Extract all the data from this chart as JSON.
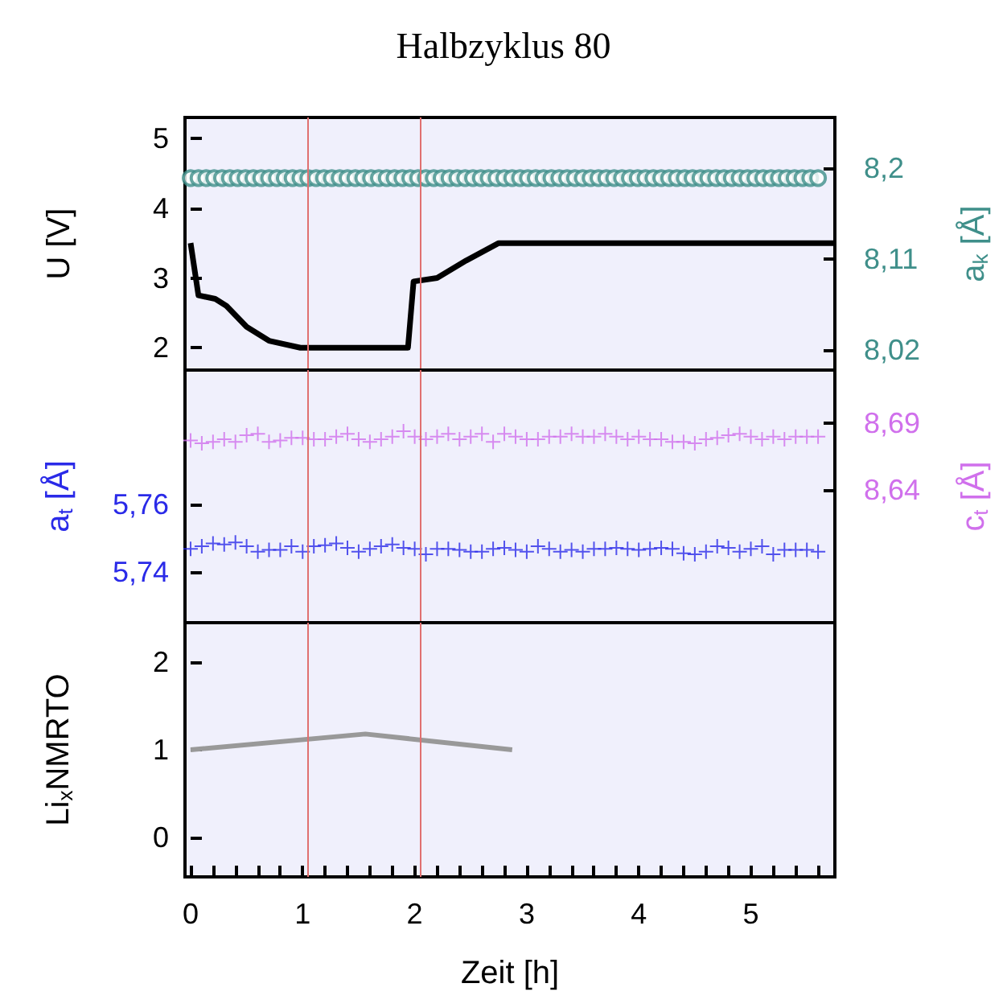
{
  "chart_data": [
    {
      "type": "line",
      "title": "Halbzyklus 80",
      "ylabel": "U [V]",
      "y2label": "a$_{k}$ [Å]",
      "xlim": [
        -0.05,
        5.75
      ],
      "ylim": [
        1.68,
        5.3
      ],
      "yticks": [
        2,
        3,
        4,
        5
      ],
      "y2lim": [
        8.0,
        8.25
      ],
      "y2ticks": [
        {
          "value": 8.02,
          "label": "8,02"
        },
        {
          "value": 8.11,
          "label": "8,11"
        },
        {
          "value": 8.2,
          "label": "8,2"
        }
      ],
      "tick_labels": "y",
      "grid": false,
      "ref_lines": [
        {
          "axis": "x",
          "value": 1.05,
          "color": "#e07070"
        },
        {
          "axis": "x",
          "value": 2.05,
          "color": "#e07070"
        }
      ],
      "series": [
        {
          "color": "#000000",
          "marker": "none",
          "x": [
            0,
            0.07,
            0.22,
            0.32,
            0.5,
            0.7,
            0.98,
            1.94,
            1.99,
            2.2,
            2.46,
            2.75,
            5.75
          ],
          "values": [
            3.5,
            2.75,
            2.7,
            2.6,
            2.3,
            2.1,
            2.0,
            2.0,
            2.95,
            3.0,
            3.25,
            3.5,
            3.5
          ]
        },
        {
          "type": "scatter",
          "axis": "y2",
          "color": "#3f8f8a",
          "marker": "circle",
          "x": [
            0,
            0.07,
            0.14,
            0.21,
            0.28,
            0.35,
            0.42,
            0.49,
            0.56,
            0.63,
            0.7,
            0.77,
            0.84,
            0.91,
            0.98,
            1.05,
            1.12,
            1.19,
            1.26,
            1.33,
            1.4,
            1.47,
            1.54,
            1.61,
            1.68,
            1.75,
            1.82,
            1.89,
            1.96,
            2.03,
            2.1,
            2.17,
            2.24,
            2.31,
            2.38,
            2.45,
            2.52,
            2.59,
            2.66,
            2.73,
            2.8,
            2.87,
            2.94,
            3.01,
            3.08,
            3.15,
            3.22,
            3.29,
            3.36,
            3.43,
            3.5,
            3.57,
            3.64,
            3.71,
            3.78,
            3.85,
            3.92,
            3.99,
            4.06,
            4.13,
            4.2,
            4.27,
            4.34,
            4.41,
            4.48,
            4.55,
            4.62,
            4.69,
            4.76,
            4.83,
            4.9,
            4.97,
            5.04,
            5.11,
            5.18,
            5.25,
            5.32,
            5.39,
            5.46,
            5.53,
            5.6
          ],
          "values": [
            8.19,
            8.19,
            8.19,
            8.19,
            8.19,
            8.19,
            8.19,
            8.19,
            8.19,
            8.19,
            8.19,
            8.19,
            8.19,
            8.19,
            8.19,
            8.19,
            8.19,
            8.19,
            8.19,
            8.19,
            8.19,
            8.19,
            8.19,
            8.19,
            8.19,
            8.19,
            8.19,
            8.19,
            8.19,
            8.19,
            8.19,
            8.19,
            8.19,
            8.19,
            8.19,
            8.19,
            8.19,
            8.19,
            8.19,
            8.19,
            8.19,
            8.19,
            8.19,
            8.19,
            8.19,
            8.19,
            8.19,
            8.19,
            8.19,
            8.19,
            8.19,
            8.19,
            8.19,
            8.19,
            8.19,
            8.19,
            8.19,
            8.19,
            8.19,
            8.19,
            8.19,
            8.19,
            8.19,
            8.19,
            8.19,
            8.19,
            8.19,
            8.19,
            8.19,
            8.19,
            8.19,
            8.19,
            8.19,
            8.19,
            8.19,
            8.19,
            8.19,
            8.19,
            8.19,
            8.19,
            8.19
          ]
        }
      ]
    },
    {
      "type": "scatter",
      "ylabel": "a$_{t}$ [Å]",
      "y2label": "c$_{t}$ [Å]",
      "xlim": [
        -0.05,
        5.75
      ],
      "ylim": [
        5.725,
        5.8
      ],
      "yticks": [
        {
          "value": 5.74,
          "label": "5,74"
        },
        {
          "value": 5.76,
          "label": "5,76"
        }
      ],
      "y2lim": [
        8.54,
        8.73
      ],
      "y2ticks": [
        {
          "value": 8.64,
          "label": "8,64"
        },
        {
          "value": 8.69,
          "label": "8,69"
        }
      ],
      "tick_labels": "y",
      "grid": false,
      "ref_lines": [
        {
          "axis": "x",
          "value": 1.05,
          "color": "#e07070"
        },
        {
          "axis": "x",
          "value": 2.05,
          "color": "#e07070"
        }
      ],
      "x": [
        0,
        0.1,
        0.2,
        0.3,
        0.4,
        0.5,
        0.6,
        0.7,
        0.8,
        0.9,
        1.0,
        1.1,
        1.2,
        1.3,
        1.4,
        1.5,
        1.6,
        1.7,
        1.8,
        1.9,
        2.0,
        2.1,
        2.2,
        2.3,
        2.4,
        2.5,
        2.6,
        2.7,
        2.8,
        2.9,
        3.0,
        3.1,
        3.2,
        3.3,
        3.4,
        3.5,
        3.6,
        3.7,
        3.8,
        3.9,
        4.0,
        4.1,
        4.2,
        4.3,
        4.4,
        4.5,
        4.6,
        4.7,
        4.8,
        4.9,
        5.0,
        5.1,
        5.2,
        5.3,
        5.4,
        5.5,
        5.6
      ],
      "series": [
        {
          "color": "#2a2ae8",
          "marker": "cross",
          "values": [
            5.7469,
            5.7477,
            5.7485,
            5.7482,
            5.7488,
            5.7477,
            5.7461,
            5.7466,
            5.7466,
            5.7477,
            5.7461,
            5.7477,
            5.748,
            5.7485,
            5.7472,
            5.7461,
            5.7469,
            5.7477,
            5.7482,
            5.7472,
            5.7469,
            5.7453,
            5.7469,
            5.7469,
            5.7466,
            5.7461,
            5.7461,
            5.7469,
            5.7472,
            5.7466,
            5.7461,
            5.7477,
            5.7469,
            5.7461,
            5.7466,
            5.7461,
            5.7469,
            5.7469,
            5.7472,
            5.7469,
            5.7466,
            5.7469,
            5.7472,
            5.7469,
            5.7456,
            5.7453,
            5.7461,
            5.7477,
            5.7472,
            5.7461,
            5.7469,
            5.7477,
            5.7453,
            5.7466,
            5.7466,
            5.7466,
            5.7461
          ]
        },
        {
          "color": "#d070ec",
          "axis": "y2",
          "marker": "cross",
          "values": [
            8.677,
            8.675,
            8.676,
            8.678,
            8.676,
            8.681,
            8.682,
            8.676,
            8.677,
            8.679,
            8.679,
            8.678,
            8.678,
            8.68,
            8.682,
            8.678,
            8.676,
            8.678,
            8.68,
            8.684,
            8.68,
            8.678,
            8.68,
            8.682,
            8.678,
            8.68,
            8.682,
            8.676,
            8.682,
            8.68,
            8.678,
            8.678,
            8.68,
            8.68,
            8.682,
            8.68,
            8.68,
            8.682,
            8.68,
            8.678,
            8.68,
            8.678,
            8.678,
            8.676,
            8.676,
            8.675,
            8.678,
            8.679,
            8.681,
            8.682,
            8.68,
            8.678,
            8.68,
            8.678,
            8.68,
            8.68,
            8.68
          ]
        }
      ]
    },
    {
      "type": "line",
      "ylabel": "Li$_{x}$NMRTO",
      "xlabel": "Zeit [h]",
      "xlim": [
        -0.05,
        5.75
      ],
      "xticks": [
        0,
        {
          "value": 0.2,
          "label": null
        },
        {
          "value": 0.4,
          "label": null
        },
        {
          "value": 0.6,
          "label": null
        },
        {
          "value": 0.8,
          "label": null
        },
        1,
        {
          "value": 1.2,
          "label": null
        },
        {
          "value": 1.4,
          "label": null
        },
        {
          "value": 1.6,
          "label": null
        },
        {
          "value": 1.8,
          "label": null
        },
        2,
        {
          "value": 2.2,
          "label": null
        },
        {
          "value": 2.4,
          "label": null
        },
        {
          "value": 2.6,
          "label": null
        },
        {
          "value": 2.8,
          "label": null
        },
        3,
        {
          "value": 3.2,
          "label": null
        },
        {
          "value": 3.4,
          "label": null
        },
        {
          "value": 3.6,
          "label": null
        },
        {
          "value": 3.8,
          "label": null
        },
        4,
        {
          "value": 4.2,
          "label": null
        },
        {
          "value": 4.4,
          "label": null
        },
        {
          "value": 4.6,
          "label": null
        },
        {
          "value": 4.8,
          "label": null
        },
        5,
        {
          "value": 5.2,
          "label": null
        },
        {
          "value": 5.4,
          "label": null
        },
        {
          "value": 5.6,
          "label": null
        }
      ],
      "ylim": [
        -0.45,
        2.45
      ],
      "yticks": [
        0,
        1,
        2
      ],
      "grid": false,
      "ref_lines": [
        {
          "axis": "x",
          "value": 1.05,
          "color": "#e07070"
        },
        {
          "axis": "x",
          "value": 2.05,
          "color": "#e07070"
        }
      ],
      "series": [
        {
          "color": "#999999",
          "marker": "none",
          "x": [
            0,
            1.56,
            2.87
          ],
          "values": [
            1.0,
            1.18,
            1.0
          ]
        }
      ]
    }
  ]
}
